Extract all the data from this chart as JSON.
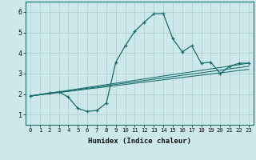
{
  "xlabel": "Humidex (Indice chaleur)",
  "bg_color": "#cce8ea",
  "grid_color": "#aaccce",
  "line_color": "#1a6b6b",
  "xlim": [
    -0.5,
    23.5
  ],
  "ylim": [
    0.5,
    6.5
  ],
  "xticks": [
    0,
    1,
    2,
    3,
    4,
    5,
    6,
    7,
    8,
    9,
    10,
    11,
    12,
    13,
    14,
    15,
    16,
    17,
    18,
    19,
    20,
    21,
    22,
    23
  ],
  "yticks": [
    1,
    2,
    3,
    4,
    5,
    6
  ],
  "line_main": {
    "x": [
      0,
      2,
      3,
      4,
      5,
      6,
      7,
      8,
      9,
      10,
      11,
      12,
      13,
      14,
      15,
      16,
      17,
      18,
      19,
      20,
      21,
      22,
      23
    ],
    "y": [
      1.9,
      2.05,
      2.1,
      1.85,
      1.3,
      1.15,
      1.2,
      1.55,
      3.55,
      4.35,
      5.05,
      5.5,
      5.9,
      5.92,
      4.7,
      4.05,
      4.35,
      3.5,
      3.55,
      3.0,
      3.35,
      3.5,
      3.5
    ]
  },
  "lines_linear": [
    {
      "x0": 0,
      "y0": 1.9,
      "x1": 23,
      "y1": 3.5
    },
    {
      "x0": 0,
      "y0": 1.9,
      "x1": 23,
      "y1": 3.35
    },
    {
      "x0": 0,
      "y0": 1.9,
      "x1": 23,
      "y1": 3.2
    }
  ]
}
